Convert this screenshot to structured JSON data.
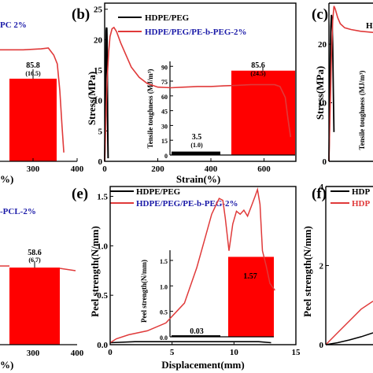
{
  "colors": {
    "black": "#000000",
    "red": "#e03a3a",
    "blue": "#1a1aa8",
    "bar": "#ff0000"
  },
  "panels": {
    "a": {
      "legend_red_text": "PC 2%",
      "x_ticks": [
        "300",
        "400"
      ],
      "x_label_fragment": "%)",
      "bar_value": "85.8",
      "bar_sd": "(16.5)"
    },
    "b": {
      "label": "(b)",
      "legend": [
        {
          "name": "HDPE/PEG",
          "color": "black"
        },
        {
          "name": "HDPE/PEG/PE-b-PEG-2%",
          "color": "red"
        }
      ],
      "y_label": "Stress(MPa)",
      "x_label": "Strain(%)",
      "y_ticks": [
        "0",
        "5",
        "10",
        "15",
        "20",
        "25"
      ],
      "x_ticks": [
        "0",
        "200",
        "400",
        "600"
      ],
      "inset": {
        "y_label": "Tensile toughness (MJ/m³)",
        "y_ticks": [
          "0",
          "15",
          "30",
          "45",
          "60",
          "75",
          "90"
        ],
        "bars": [
          {
            "value": "3.5",
            "sd": "(1.0)"
          },
          {
            "value": "85.6",
            "sd": "(24.5)"
          }
        ]
      }
    },
    "c": {
      "label": "(c)",
      "legend_fragment": "H",
      "y_label": "Stress(MPa)",
      "y_ticks": [
        "0",
        "10",
        "20"
      ],
      "inset_y_label": "Tensile toughness (MJ/m³)"
    },
    "d": {
      "legend_red_text": "-PCL-2%",
      "x_ticks": [
        "300",
        "400"
      ],
      "x_label_fragment": "%)",
      "bar_value": "58.6",
      "bar_sd": "(6.7)"
    },
    "e": {
      "label": "(e)",
      "legend": [
        {
          "name": "HDPE/PEG",
          "color": "black"
        },
        {
          "name": "HDPE/PEG/PE-b-PEG-2%",
          "color": "red"
        }
      ],
      "y_label": "Peel strength(N/mm)",
      "x_label": "Displacement(mm)",
      "y_ticks": [
        "0.0",
        "0.5",
        "1.0",
        "1.5"
      ],
      "x_ticks": [
        "0",
        "5",
        "10",
        "15"
      ],
      "inset": {
        "y_label": "Peel strength(N/mm)",
        "y_ticks": [
          "0.0",
          "0.5",
          "1.0",
          "1.5"
        ],
        "bars": [
          {
            "value": "0.03"
          },
          {
            "value": "1.57"
          }
        ]
      }
    },
    "f": {
      "label": "(f)",
      "legend_fragments": [
        "HDP",
        "HDP"
      ],
      "y_label": "Peel strength(N/mm)",
      "y_ticks": [
        "0",
        "2",
        "4"
      ]
    }
  },
  "chart_data": [
    {
      "type": "line",
      "panel": "b",
      "xlabel": "Strain(%)",
      "ylabel": "Stress(MPa)",
      "xlim": [
        0,
        720
      ],
      "ylim": [
        0,
        26
      ],
      "series": [
        {
          "name": "HDPE/PEG",
          "x": [
            0,
            2,
            4,
            5,
            6,
            7,
            8,
            9,
            10,
            11,
            12,
            13
          ],
          "y": [
            0,
            6,
            14,
            19,
            21.5,
            22,
            21.8,
            20,
            14,
            8,
            3,
            0.5
          ]
        },
        {
          "name": "HDPE/PEG/PE-b-PEG-2%",
          "x": [
            0,
            3,
            6,
            10,
            15,
            20,
            28,
            35,
            45,
            60,
            80,
            100,
            130,
            160,
            200,
            250,
            300,
            350,
            400,
            450,
            500,
            550,
            600,
            640,
            660,
            680,
            690,
            700
          ],
          "y": [
            0,
            4,
            9,
            14,
            18,
            20.5,
            21.8,
            22,
            21.3,
            19.5,
            17.5,
            15.5,
            13.8,
            12.8,
            12.2,
            12.1,
            12.2,
            12.3,
            12.3,
            12.4,
            12.5,
            12.6,
            12.6,
            12.6,
            12.3,
            10.5,
            7,
            4
          ]
        }
      ]
    },
    {
      "type": "bar",
      "panel": "b-inset",
      "ylabel": "Tensile toughness (MJ/m³)",
      "ylim": [
        0,
        95
      ],
      "categories": [
        "HDPE/PEG",
        "HDPE/PEG/PE-b-PEG-2%"
      ],
      "values": [
        3.5,
        85.6
      ],
      "errors": [
        1.0,
        24.5
      ]
    },
    {
      "type": "line",
      "panel": "e",
      "xlabel": "Displacement(mm)",
      "ylabel": "Peel strength(N/mm)",
      "xlim": [
        0,
        15
      ],
      "ylim": [
        0,
        1.6
      ],
      "series": [
        {
          "name": "HDPE/PEG",
          "x": [
            0,
            2,
            4,
            6,
            8,
            10,
            12,
            13
          ],
          "y": [
            0.02,
            0.03,
            0.03,
            0.03,
            0.03,
            0.03,
            0.03,
            0.02
          ]
        },
        {
          "name": "HDPE/PEG/PE-b-PEG-2%",
          "x": [
            0,
            0.5,
            1.5,
            3,
            4.5,
            6,
            7,
            7.6,
            8.2,
            8.8,
            9.1,
            9.3,
            9.6,
            9.9,
            10.2,
            10.5,
            10.8,
            11.1,
            11.4,
            11.7,
            11.9,
            12.1,
            12.3,
            12.6,
            12.9,
            13.3
          ],
          "y": [
            0.02,
            0.06,
            0.1,
            0.14,
            0.22,
            0.42,
            0.78,
            1.05,
            1.32,
            1.48,
            1.46,
            1.28,
            0.95,
            1.22,
            1.35,
            1.32,
            1.36,
            1.3,
            1.4,
            1.5,
            1.57,
            1.42,
            0.95,
            0.8,
            0.62,
            0.55
          ]
        }
      ]
    },
    {
      "type": "bar",
      "panel": "e-inset",
      "ylabel": "Peel strength(N/mm)",
      "ylim": [
        0,
        1.7
      ],
      "categories": [
        "HDPE/PEG",
        "HDPE/PEG/PE-b-PEG-2%"
      ],
      "values": [
        0.03,
        1.57
      ]
    },
    {
      "type": "line",
      "panel": "a",
      "xlim": [
        0,
        400
      ],
      "series": [
        {
          "x": [
            0,
            50,
            100,
            150,
            200,
            250,
            300,
            320,
            335,
            345,
            352,
            358,
            363
          ],
          "y": [
            0.62,
            0.62,
            0.63,
            0.63,
            0.63,
            0.63,
            0.635,
            0.64,
            0.6,
            0.55,
            0.4,
            0.2,
            0.05
          ]
        }
      ]
    },
    {
      "type": "bar",
      "panel": "a-inset",
      "values": [
        85.8
      ],
      "errors": [
        16.5
      ]
    },
    {
      "type": "bar",
      "panel": "d-inset",
      "values": [
        58.6
      ],
      "errors": [
        6.7
      ]
    },
    {
      "type": "line",
      "panel": "c",
      "ylim": [
        0,
        27
      ],
      "series": [
        {
          "x": [
            0,
            1,
            2,
            3,
            4,
            5,
            6,
            7,
            8
          ],
          "y": [
            0,
            8,
            17,
            23,
            25,
            24,
            20,
            12,
            5
          ]
        },
        {
          "x": [
            0,
            2,
            4,
            6,
            8,
            10,
            14,
            18,
            25,
            35,
            50,
            70
          ],
          "y": [
            0,
            9,
            18,
            24,
            26.5,
            26,
            24.5,
            23.5,
            22.8,
            22.5,
            22.2,
            22
          ]
        }
      ]
    },
    {
      "type": "line",
      "panel": "f",
      "ylim": [
        0,
        4
      ],
      "series": [
        {
          "x": [
            0,
            1,
            2,
            3,
            4
          ],
          "y": [
            0,
            0.05,
            0.12,
            0.2,
            0.3
          ]
        },
        {
          "x": [
            0,
            1,
            2,
            3,
            4
          ],
          "y": [
            0,
            0.3,
            0.6,
            0.9,
            1.1
          ]
        }
      ]
    }
  ]
}
